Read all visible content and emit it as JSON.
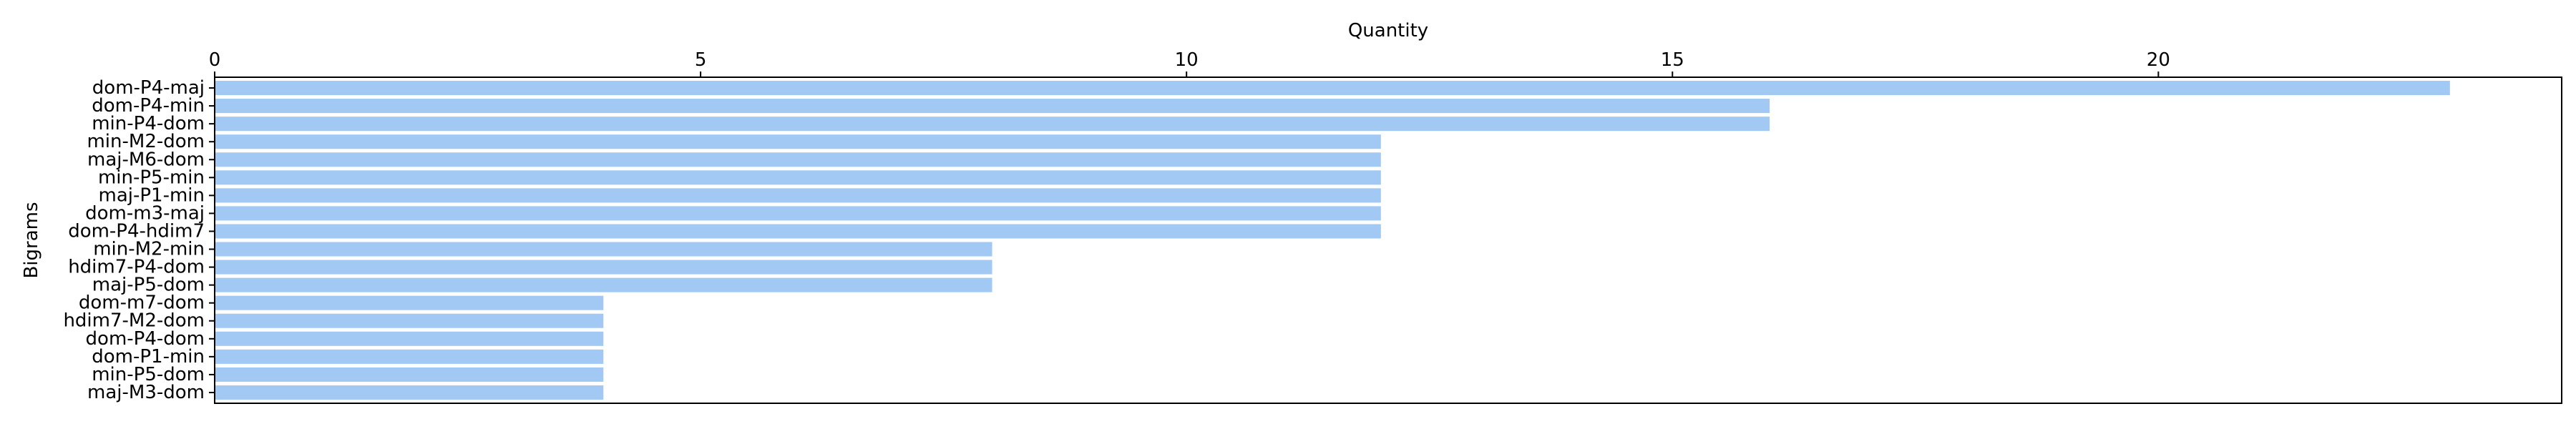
{
  "chart_data": {
    "type": "bar",
    "orientation": "horizontal",
    "xlabel": "Quantity",
    "ylabel": "Bigrams",
    "xlim": [
      0,
      24.15
    ],
    "x_ticks": [
      0,
      5,
      10,
      15,
      20
    ],
    "x_axis_position": "top",
    "grid": false,
    "bar_color": "#a1c9f4",
    "categories": [
      "dom-P4-maj",
      "dom-P4-min",
      "min-P4-dom",
      "min-M2-dom",
      "maj-M6-dom",
      "min-P5-min",
      "maj-P1-min",
      "dom-m3-maj",
      "dom-P4-hdim7",
      "min-M2-min",
      "hdim7-P4-dom",
      "maj-P5-dom",
      "dom-m7-dom",
      "hdim7-M2-dom",
      "dom-P4-dom",
      "dom-P1-min",
      "min-P5-dom",
      "maj-M3-dom"
    ],
    "values": [
      23,
      16,
      16,
      12,
      12,
      12,
      12,
      12,
      12,
      8,
      8,
      8,
      4,
      4,
      4,
      4,
      4,
      4
    ]
  }
}
